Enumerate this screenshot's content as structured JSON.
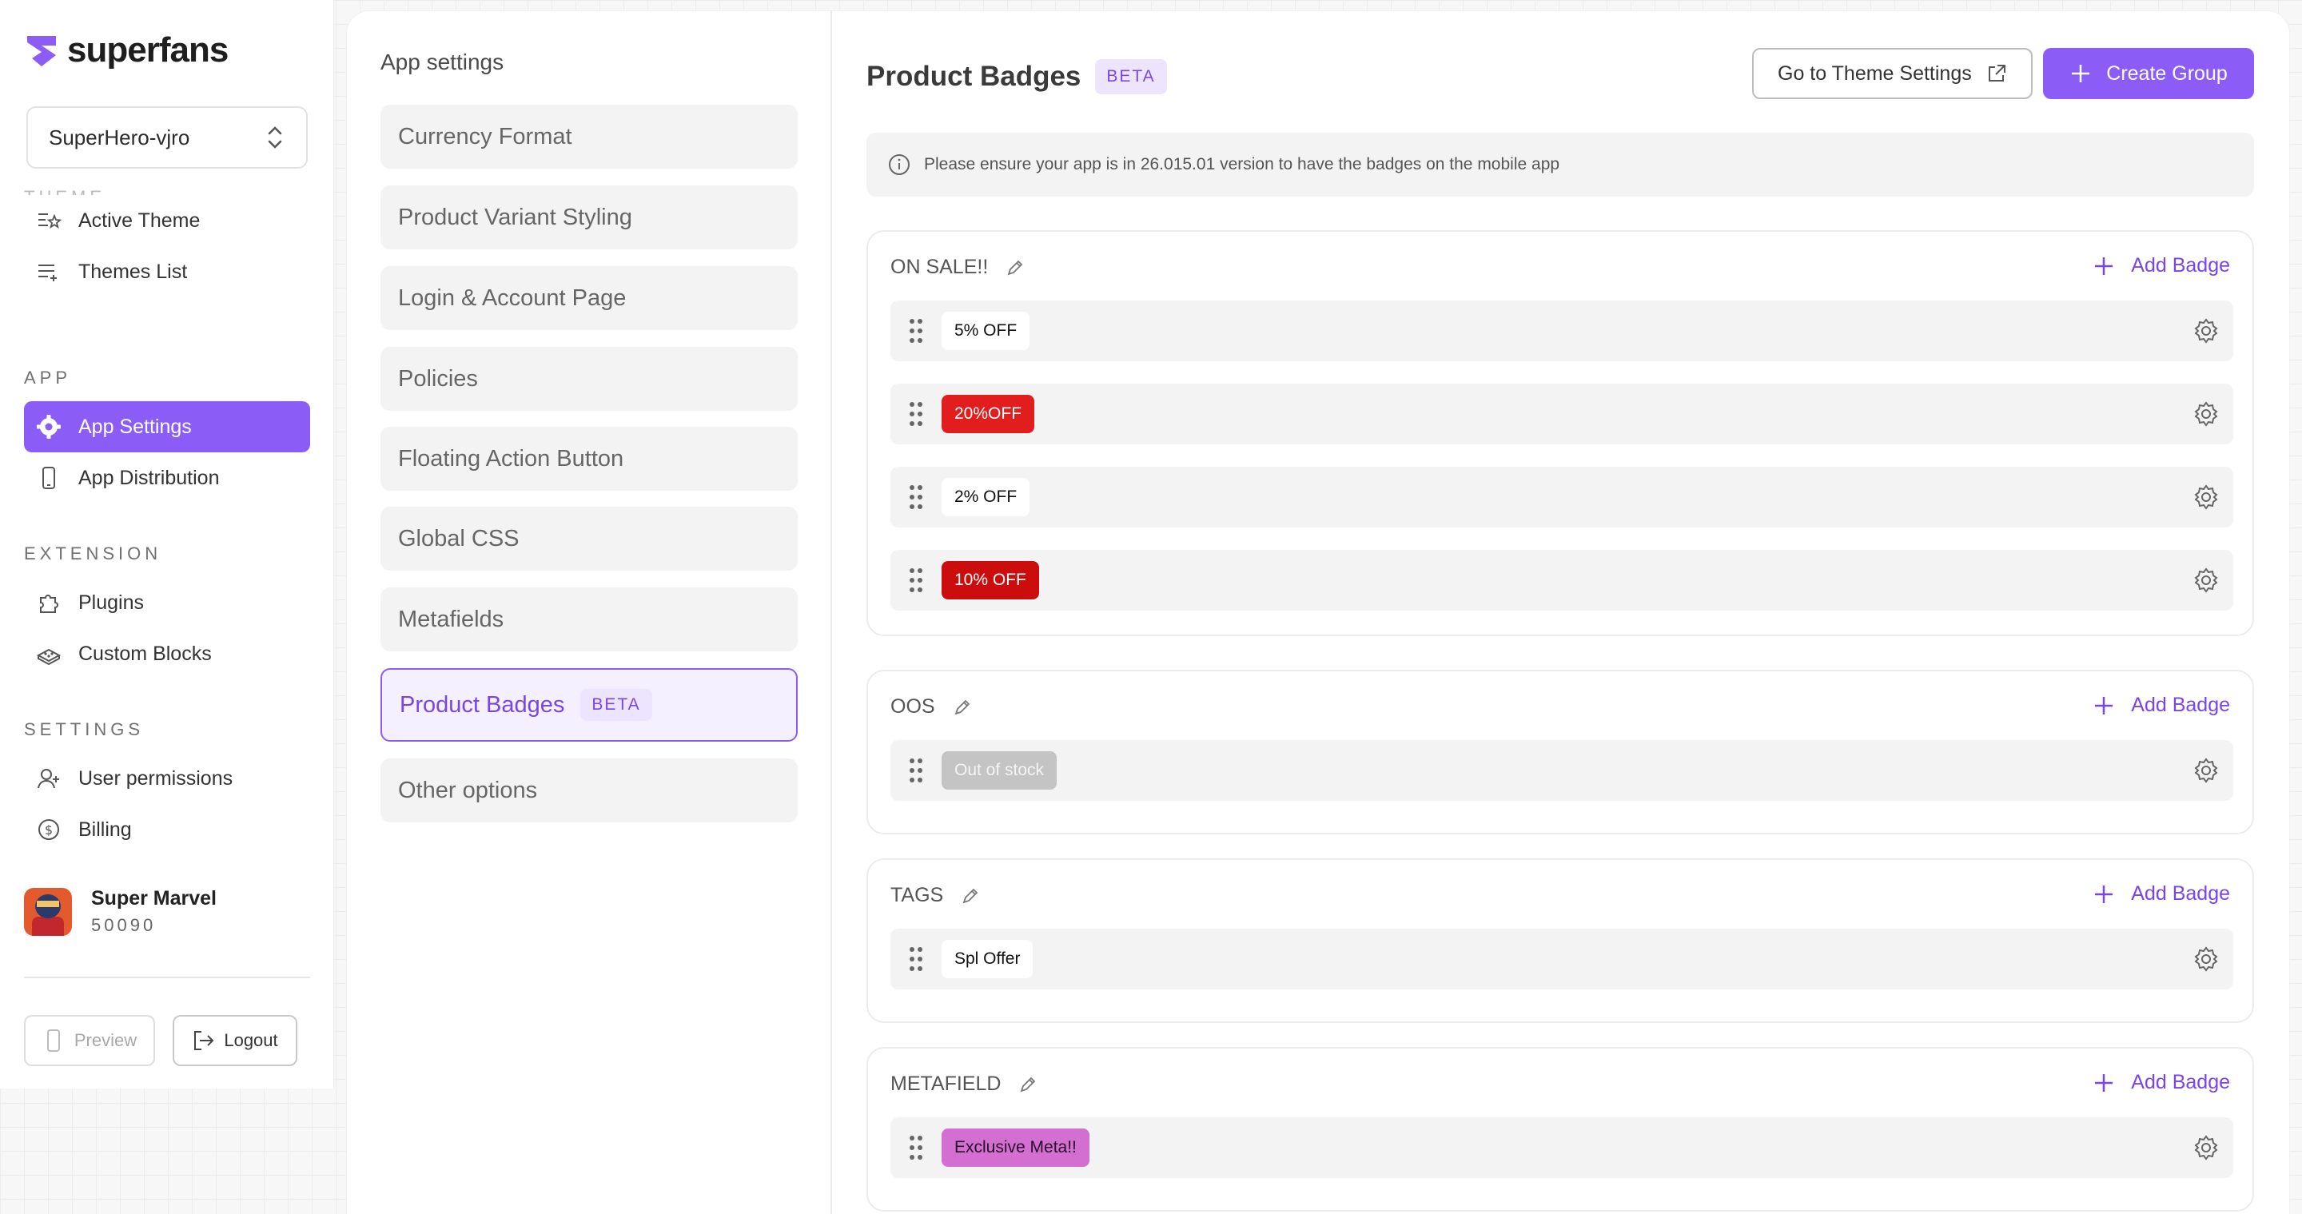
{
  "brand": {
    "name": "superfans",
    "accent": "#8b5cf6"
  },
  "store_select": {
    "value": "SuperHero-vjro"
  },
  "sidebar": {
    "sections": [
      {
        "title": "",
        "items": [
          {
            "label": "Active Theme",
            "icon": "theme-star-icon"
          },
          {
            "label": "Themes List",
            "icon": "list-add-icon"
          }
        ]
      },
      {
        "title": "APP",
        "items": [
          {
            "label": "App Settings",
            "icon": "gear-icon",
            "active": true
          },
          {
            "label": "App Distribution",
            "icon": "phone-icon"
          }
        ]
      },
      {
        "title": "EXTENSION",
        "items": [
          {
            "label": "Plugins",
            "icon": "puzzle-icon"
          },
          {
            "label": "Custom Blocks",
            "icon": "blocks-icon"
          }
        ]
      },
      {
        "title": "SETTINGS",
        "items": [
          {
            "label": "User permissions",
            "icon": "user-plus-icon"
          },
          {
            "label": "Billing",
            "icon": "dollar-icon"
          }
        ]
      }
    ],
    "profile": {
      "name": "Super Marvel",
      "id": "50090"
    },
    "preview_label": "Preview",
    "logout_label": "Logout"
  },
  "settings": {
    "title": "App settings",
    "items": [
      "Currency Format",
      "Product Variant Styling",
      "Login & Account Page",
      "Policies",
      "Floating Action Button",
      "Global CSS",
      "Metafields",
      "Product Badges",
      "Other options"
    ],
    "active_badge": "BETA"
  },
  "content": {
    "title": "Product Badges",
    "beta": "BETA",
    "theme_button": "Go to Theme Settings",
    "create_button": "Create Group",
    "notice": "Please ensure your app is in 26.015.01 version to have the badges on the mobile app",
    "add_badge_label": "Add Badge",
    "groups": [
      {
        "name": "ON SALE!!",
        "badges": [
          {
            "text": "5% OFF",
            "bg": "#ffffff",
            "fg": "#111111"
          },
          {
            "text": "20%OFF",
            "bg": "#e11d1d",
            "fg": "#ffffff"
          },
          {
            "text": "2% OFF",
            "bg": "#ffffff",
            "fg": "#111111"
          },
          {
            "text": "10% OFF",
            "bg": "#cc0d0d",
            "fg": "#ffffff"
          }
        ]
      },
      {
        "name": "OOS",
        "badges": [
          {
            "text": "Out of stock",
            "bg": "#c4c4c4",
            "fg": "#f4f4f4"
          }
        ]
      },
      {
        "name": "TAGS",
        "badges": [
          {
            "text": "Spl Offer",
            "bg": "#ffffff",
            "fg": "#111111"
          }
        ]
      },
      {
        "name": "METAFIELD",
        "badges": [
          {
            "text": "Exclusive Meta!!",
            "bg": "#d26fd0",
            "fg": "#2a0a2a"
          }
        ]
      }
    ]
  }
}
